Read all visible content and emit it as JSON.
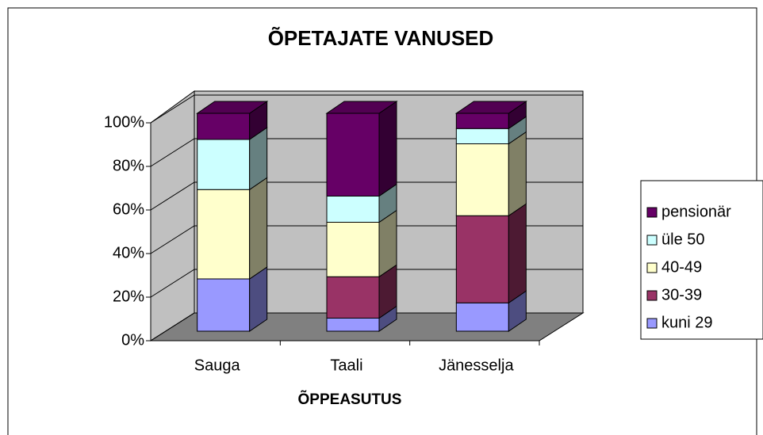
{
  "chart_data": {
    "type": "bar",
    "stacked": true,
    "title": "ÕPETAJATE VANUSED",
    "x_label": "ÕPPEASUTUS",
    "categories": [
      "Sauga",
      "Taali",
      "Jänesselja"
    ],
    "series": [
      {
        "name": "kuni 29",
        "color": "#9999ff",
        "values": [
          24,
          6,
          13
        ]
      },
      {
        "name": "30-39",
        "color": "#993366",
        "values": [
          0,
          19,
          40
        ]
      },
      {
        "name": "40-49",
        "color": "#ffffcc",
        "values": [
          41,
          25,
          33
        ]
      },
      {
        "name": "üle 50",
        "color": "#ccffff",
        "values": [
          23,
          12,
          7
        ]
      },
      {
        "name": "pensionär",
        "color": "#660066",
        "values": [
          12,
          38,
          7
        ]
      }
    ],
    "ylim": [
      0,
      100
    ],
    "yticks": [
      {
        "value": 0,
        "label": "0%"
      },
      {
        "value": 20,
        "label": "20%"
      },
      {
        "value": 40,
        "label": "40%"
      },
      {
        "value": 60,
        "label": "60%"
      },
      {
        "value": 80,
        "label": "80%"
      },
      {
        "value": 100,
        "label": "100%"
      }
    ],
    "grid": true,
    "legend": "right"
  }
}
